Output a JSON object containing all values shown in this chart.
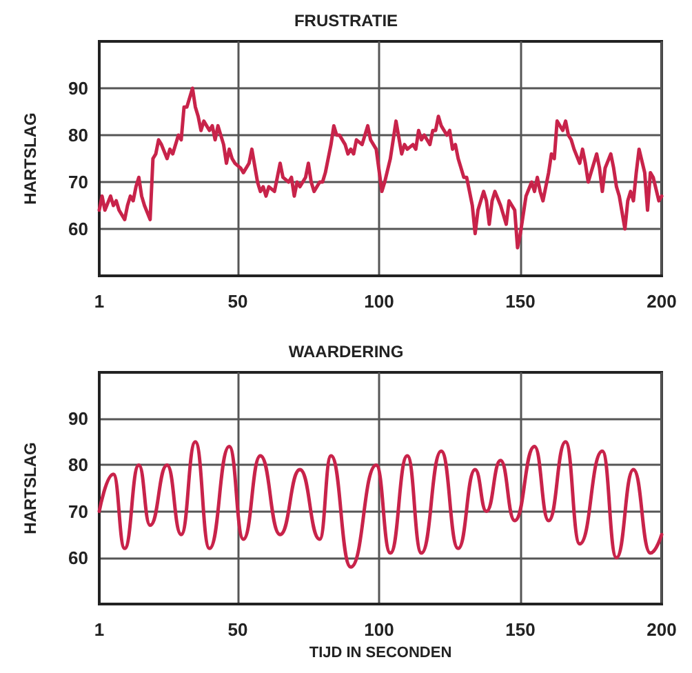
{
  "chart_data": [
    {
      "type": "line",
      "title": "FRUSTRATIE",
      "ylabel": "HARTSLAG",
      "xlim": [
        1,
        200
      ],
      "xticks": [
        1,
        50,
        100,
        150,
        200
      ],
      "ylim": [
        50,
        100
      ],
      "yticks": [
        60,
        70,
        80,
        90
      ],
      "grid": true,
      "marker": "none",
      "line_style": "solid",
      "x": [
        1,
        2,
        3,
        5,
        6,
        7,
        8,
        10,
        11,
        12,
        13,
        14,
        15,
        16,
        17,
        19,
        20,
        21,
        22,
        23,
        25,
        26,
        27,
        29,
        30,
        31,
        32,
        34,
        35,
        36,
        37,
        38,
        40,
        41,
        42,
        43,
        45,
        46,
        47,
        48,
        49,
        51,
        52,
        54,
        55,
        57,
        58,
        59,
        60,
        61,
        63,
        64,
        65,
        66,
        68,
        69,
        70,
        71,
        72,
        74,
        75,
        76,
        77,
        79,
        80,
        81,
        83,
        84,
        85,
        86,
        88,
        89,
        90,
        91,
        92,
        94,
        95,
        96,
        97,
        99,
        101,
        102,
        104,
        105,
        106,
        108,
        109,
        110,
        112,
        113,
        114,
        115,
        116,
        118,
        119,
        120,
        121,
        122,
        124,
        125,
        126,
        127,
        128,
        130,
        131,
        132,
        133,
        134,
        135,
        137,
        138,
        139,
        140,
        141,
        143,
        144,
        145,
        146,
        148,
        149,
        150,
        151,
        152,
        154,
        155,
        156,
        157,
        158,
        160,
        161,
        162,
        163,
        165,
        166,
        167,
        168,
        169,
        171,
        172,
        173,
        174,
        176,
        177,
        178,
        179,
        180,
        182,
        183,
        184,
        185,
        187,
        188,
        189,
        190,
        191,
        192,
        194,
        195,
        196,
        197,
        199,
        200
      ],
      "series": [
        {
          "color": "#c8234a",
          "values": [
            64,
            67,
            64,
            67,
            65,
            66,
            64,
            62,
            65,
            67,
            66,
            69,
            71,
            67,
            65,
            62,
            75,
            76,
            79,
            78,
            75,
            77,
            76,
            80,
            79,
            86,
            86,
            90,
            86,
            84,
            81,
            83,
            81,
            82,
            79,
            82,
            78,
            74,
            77,
            75,
            74,
            73,
            72,
            74,
            77,
            70,
            68,
            69,
            67,
            69,
            68,
            71,
            74,
            71,
            70,
            71,
            67,
            70,
            69,
            71,
            74,
            70,
            68,
            70,
            70,
            72,
            78,
            82,
            80,
            80,
            78,
            76,
            77,
            76,
            79,
            78,
            80,
            82,
            79,
            77,
            68,
            70,
            75,
            79,
            83,
            76,
            78,
            77,
            78,
            77,
            81,
            79,
            80,
            78,
            81,
            81,
            84,
            82,
            80,
            81,
            77,
            78,
            75,
            71,
            71,
            68,
            65,
            59,
            64,
            68,
            66,
            61,
            66,
            68,
            65,
            63,
            61,
            66,
            64,
            56,
            59,
            63,
            67,
            70,
            68,
            71,
            68,
            66,
            72,
            76,
            75,
            83,
            81,
            83,
            80,
            79,
            77,
            74,
            77,
            74,
            70,
            74,
            76,
            73,
            68,
            73,
            76,
            73,
            69,
            67,
            60,
            66,
            68,
            66,
            72,
            77,
            72,
            64,
            72,
            71,
            66,
            67
          ]
        }
      ]
    },
    {
      "type": "line",
      "title": "WAARDERING",
      "ylabel": "HARTSLAG",
      "xlabel": "TIJD IN SECONDEN",
      "xlim": [
        1,
        200
      ],
      "xticks": [
        1,
        50,
        100,
        150,
        200
      ],
      "ylim": [
        50,
        100
      ],
      "yticks": [
        60,
        70,
        80,
        90
      ],
      "grid": true,
      "marker": "none",
      "line_style": "solid",
      "x": [
        1,
        6,
        10,
        15,
        19,
        25,
        30,
        35,
        40,
        47,
        52,
        58,
        65,
        72,
        79,
        83,
        90,
        99,
        104,
        110,
        115,
        122,
        128,
        134,
        138,
        143,
        148,
        155,
        160,
        166,
        171,
        179,
        184,
        190,
        196,
        200
      ],
      "series": [
        {
          "color": "#c8234a",
          "values": [
            70,
            78,
            62,
            80,
            67,
            80,
            65,
            85,
            62,
            84,
            64,
            82,
            65,
            79,
            64,
            82,
            58,
            80,
            61,
            82,
            61,
            83,
            62,
            79,
            70,
            81,
            68,
            84,
            68,
            85,
            63,
            83,
            60,
            79,
            61,
            65
          ]
        }
      ]
    }
  ]
}
